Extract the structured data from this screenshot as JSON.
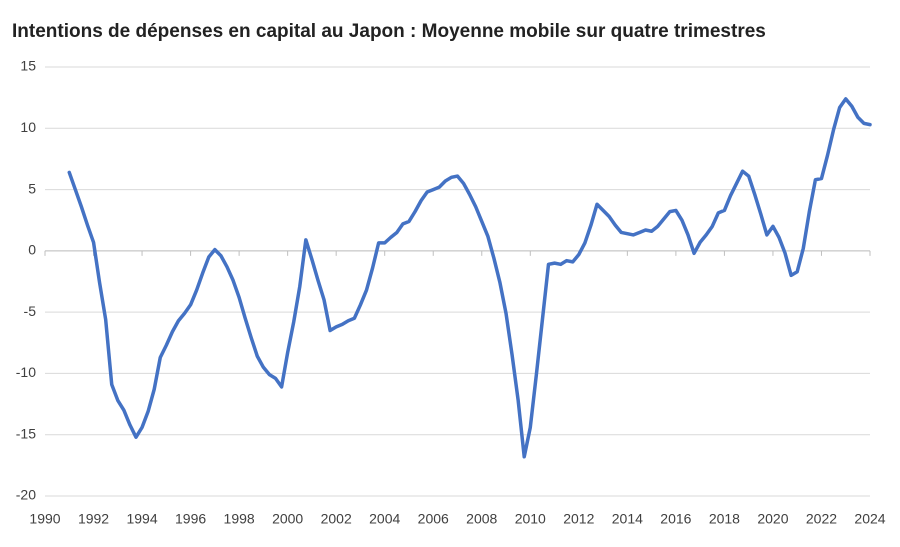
{
  "chart_data": {
    "type": "line",
    "title": "Intentions de dépenses en capital au Japon : Moyenne mobile sur quatre trimestres",
    "x": [
      1991,
      1991.25,
      1991.5,
      1991.75,
      1992,
      1992.25,
      1992.5,
      1992.75,
      1993,
      1993.25,
      1993.5,
      1993.75,
      1994,
      1994.25,
      1994.5,
      1994.75,
      1995,
      1995.25,
      1995.5,
      1995.75,
      1996,
      1996.25,
      1996.5,
      1996.75,
      1997,
      1997.25,
      1997.5,
      1997.75,
      1998,
      1998.25,
      1998.5,
      1998.75,
      1999,
      1999.25,
      1999.5,
      1999.75,
      2000,
      2000.25,
      2000.5,
      2000.75,
      2001,
      2001.25,
      2001.5,
      2001.75,
      2002,
      2002.25,
      2002.5,
      2002.75,
      2003,
      2003.25,
      2003.5,
      2003.75,
      2004,
      2004.25,
      2004.5,
      2004.75,
      2005,
      2005.25,
      2005.5,
      2005.75,
      2006,
      2006.25,
      2006.5,
      2006.75,
      2007,
      2007.25,
      2007.5,
      2007.75,
      2008,
      2008.25,
      2008.5,
      2008.75,
      2009,
      2009.25,
      2009.5,
      2009.75,
      2010,
      2010.25,
      2010.5,
      2010.75,
      2011,
      2011.25,
      2011.5,
      2011.75,
      2012,
      2012.25,
      2012.5,
      2012.75,
      2013,
      2013.25,
      2013.5,
      2013.75,
      2014,
      2014.25,
      2014.5,
      2014.75,
      2015,
      2015.25,
      2015.5,
      2015.75,
      2016,
      2016.25,
      2016.5,
      2016.75,
      2017,
      2017.25,
      2017.5,
      2017.75,
      2018,
      2018.25,
      2018.5,
      2018.75,
      2019,
      2019.25,
      2019.5,
      2019.75,
      2020,
      2020.25,
      2020.5,
      2020.75,
      2021,
      2021.25,
      2021.5,
      2021.75,
      2022,
      2022.25,
      2022.5,
      2022.75,
      2023,
      2023.25,
      2023.5,
      2023.75,
      2024
    ],
    "series": [
      {
        "color": "#4472c4",
        "values": [
          6.4,
          5.0,
          3.6,
          2.1,
          0.7,
          -2.6,
          -5.6,
          -10.9,
          -12.2,
          -13.0,
          -14.2,
          -15.2,
          -14.4,
          -13.1,
          -11.3,
          -8.7,
          -7.7,
          -6.6,
          -5.7,
          -5.1,
          -4.4,
          -3.2,
          -1.8,
          -0.5,
          0.1,
          -0.4,
          -1.3,
          -2.4,
          -3.8,
          -5.5,
          -7.1,
          -8.6,
          -9.5,
          -10.1,
          -10.4,
          -11.1,
          -8.3,
          -5.8,
          -2.9,
          0.9,
          -0.7,
          -2.4,
          -4.0,
          -6.5,
          -6.2,
          -6.0,
          -5.7,
          -5.5,
          -4.4,
          -3.2,
          -1.4,
          0.65,
          0.65,
          1.1,
          1.5,
          2.2,
          2.4,
          3.2,
          4.1,
          4.8,
          5.0,
          5.2,
          5.7,
          6.0,
          6.1,
          5.5,
          4.6,
          3.6,
          2.4,
          1.2,
          -0.6,
          -2.6,
          -5.1,
          -8.5,
          -12.2,
          -16.8,
          -14.4,
          -10.1,
          -5.6,
          -1.1,
          -1.0,
          -1.1,
          -0.8,
          -0.9,
          -0.3,
          0.65,
          2.1,
          3.8,
          3.3,
          2.8,
          2.1,
          1.5,
          1.4,
          1.3,
          1.5,
          1.7,
          1.6,
          2.0,
          2.6,
          3.2,
          3.3,
          2.5,
          1.3,
          -0.2,
          0.7,
          1.3,
          2.0,
          3.1,
          3.3,
          4.5,
          5.5,
          6.5,
          6.1,
          4.6,
          3.0,
          1.3,
          2.0,
          1.1,
          -0.2,
          -2.0,
          -1.7,
          0.2,
          3.2,
          5.8,
          5.9,
          7.8,
          9.9,
          11.7,
          12.4,
          11.8,
          10.9,
          10.4,
          10.3
        ]
      }
    ],
    "xlim": [
      1990,
      2024
    ],
    "xticks": [
      1990,
      1992,
      1994,
      1996,
      1998,
      2000,
      2002,
      2004,
      2006,
      2008,
      2010,
      2012,
      2014,
      2016,
      2018,
      2020,
      2022,
      2024
    ],
    "ylim": [
      -20,
      15
    ],
    "yticks": [
      -20,
      -15,
      -10,
      -5,
      0,
      5,
      10,
      15
    ],
    "grid": true
  }
}
